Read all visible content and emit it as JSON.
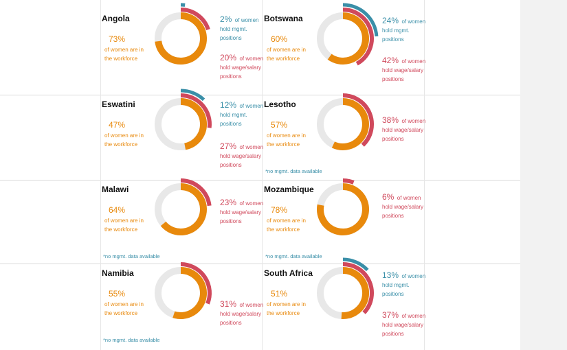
{
  "chart_data": [
    {
      "type": "pie",
      "country": "Angola",
      "workforce": {
        "pct": "73%",
        "label": "of women are in the workforce",
        "value": 73
      },
      "mgmt": {
        "pct": "2%",
        "label": "of women hold mgmt. positions",
        "value": 2
      },
      "wage": {
        "pct": "20%",
        "label": "of women hold wage/salary positions",
        "value": 20
      },
      "note": ""
    },
    {
      "type": "pie",
      "country": "Botswana",
      "workforce": {
        "pct": "60%",
        "label": "of women are in the workforce",
        "value": 60
      },
      "mgmt": {
        "pct": "24%",
        "label": "of women hold mgmt. positions",
        "value": 24
      },
      "wage": {
        "pct": "42%",
        "label": "of women hold wage/salary positions",
        "value": 42
      },
      "note": ""
    },
    {
      "type": "pie",
      "country": "Eswatini",
      "workforce": {
        "pct": "47%",
        "label": "of women are in the workforce",
        "value": 47
      },
      "mgmt": {
        "pct": "12%",
        "label": "of women hold mgmt. positions",
        "value": 12
      },
      "wage": {
        "pct": "27%",
        "label": "of women hold wage/salary positions",
        "value": 27
      },
      "note": ""
    },
    {
      "type": "pie",
      "country": "Lesotho",
      "workforce": {
        "pct": "57%",
        "label": "of women are in the workforce",
        "value": 57
      },
      "mgmt": null,
      "wage": {
        "pct": "38%",
        "label": "of women hold wage/salary positions",
        "value": 38
      },
      "note": "*no mgmt. data available"
    },
    {
      "type": "pie",
      "country": "Malawi",
      "workforce": {
        "pct": "64%",
        "label": "of women are in the workforce",
        "value": 64
      },
      "mgmt": null,
      "wage": {
        "pct": "23%",
        "label": "of women hold wage/salary positions",
        "value": 23
      },
      "note": "*no mgmt. data available"
    },
    {
      "type": "pie",
      "country": "Mozambique",
      "workforce": {
        "pct": "78%",
        "label": "of women are in the workforce",
        "value": 78
      },
      "mgmt": null,
      "wage": {
        "pct": "6%",
        "label": "of women hold wage/salary positions",
        "value": 6
      },
      "note": "*no mgmt. data available"
    },
    {
      "type": "pie",
      "country": "Namibia",
      "workforce": {
        "pct": "55%",
        "label": "of women are in the workforce",
        "value": 55
      },
      "mgmt": null,
      "wage": {
        "pct": "31%",
        "label": "of women hold wage/salary positions",
        "value": 31
      },
      "note": "*no mgmt. data available"
    },
    {
      "type": "pie",
      "country": "South Africa",
      "workforce": {
        "pct": "51%",
        "label": "of women are in the workforce",
        "value": 51
      },
      "mgmt": {
        "pct": "13%",
        "label": "of women hold mgmt. positions",
        "value": 13
      },
      "wage": {
        "pct": "37%",
        "label": "of women hold wage/salary positions",
        "value": 37
      },
      "note": ""
    }
  ],
  "colors": {
    "workforce": "#e8890c",
    "mgmt": "#3a8fa8",
    "wage": "#d0495c",
    "track": "#e8e8e8"
  }
}
